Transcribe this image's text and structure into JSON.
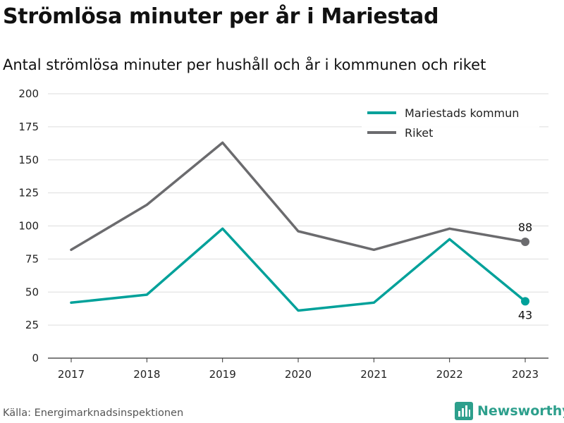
{
  "title": "Strömlösa minuter per år i Mariestad",
  "subtitle": "Antal strömlösa minuter per hushåll och år i kommunen och riket",
  "source": "Källa: Energimarknadsinspektionen",
  "brand": {
    "name": "Newsworthy",
    "icon": "bar-chart-logo-icon",
    "color": "#2d9f8c"
  },
  "chart_data": {
    "type": "line",
    "x": [
      "2017",
      "2018",
      "2019",
      "2020",
      "2021",
      "2022",
      "2023"
    ],
    "series": [
      {
        "name": "Mariestads kommun",
        "color": "#00a19a",
        "values": [
          42,
          48,
          98,
          36,
          42,
          90,
          43
        ],
        "end_label": "43"
      },
      {
        "name": "Riket",
        "color": "#6b6b6e",
        "values": [
          82,
          116,
          163,
          96,
          82,
          98,
          88
        ],
        "end_label": "88"
      }
    ],
    "yticks": [
      "0",
      "25",
      "50",
      "75",
      "100",
      "125",
      "150",
      "175",
      "200"
    ],
    "ylim": [
      0,
      200
    ],
    "grid": true,
    "legend": "top-right"
  }
}
